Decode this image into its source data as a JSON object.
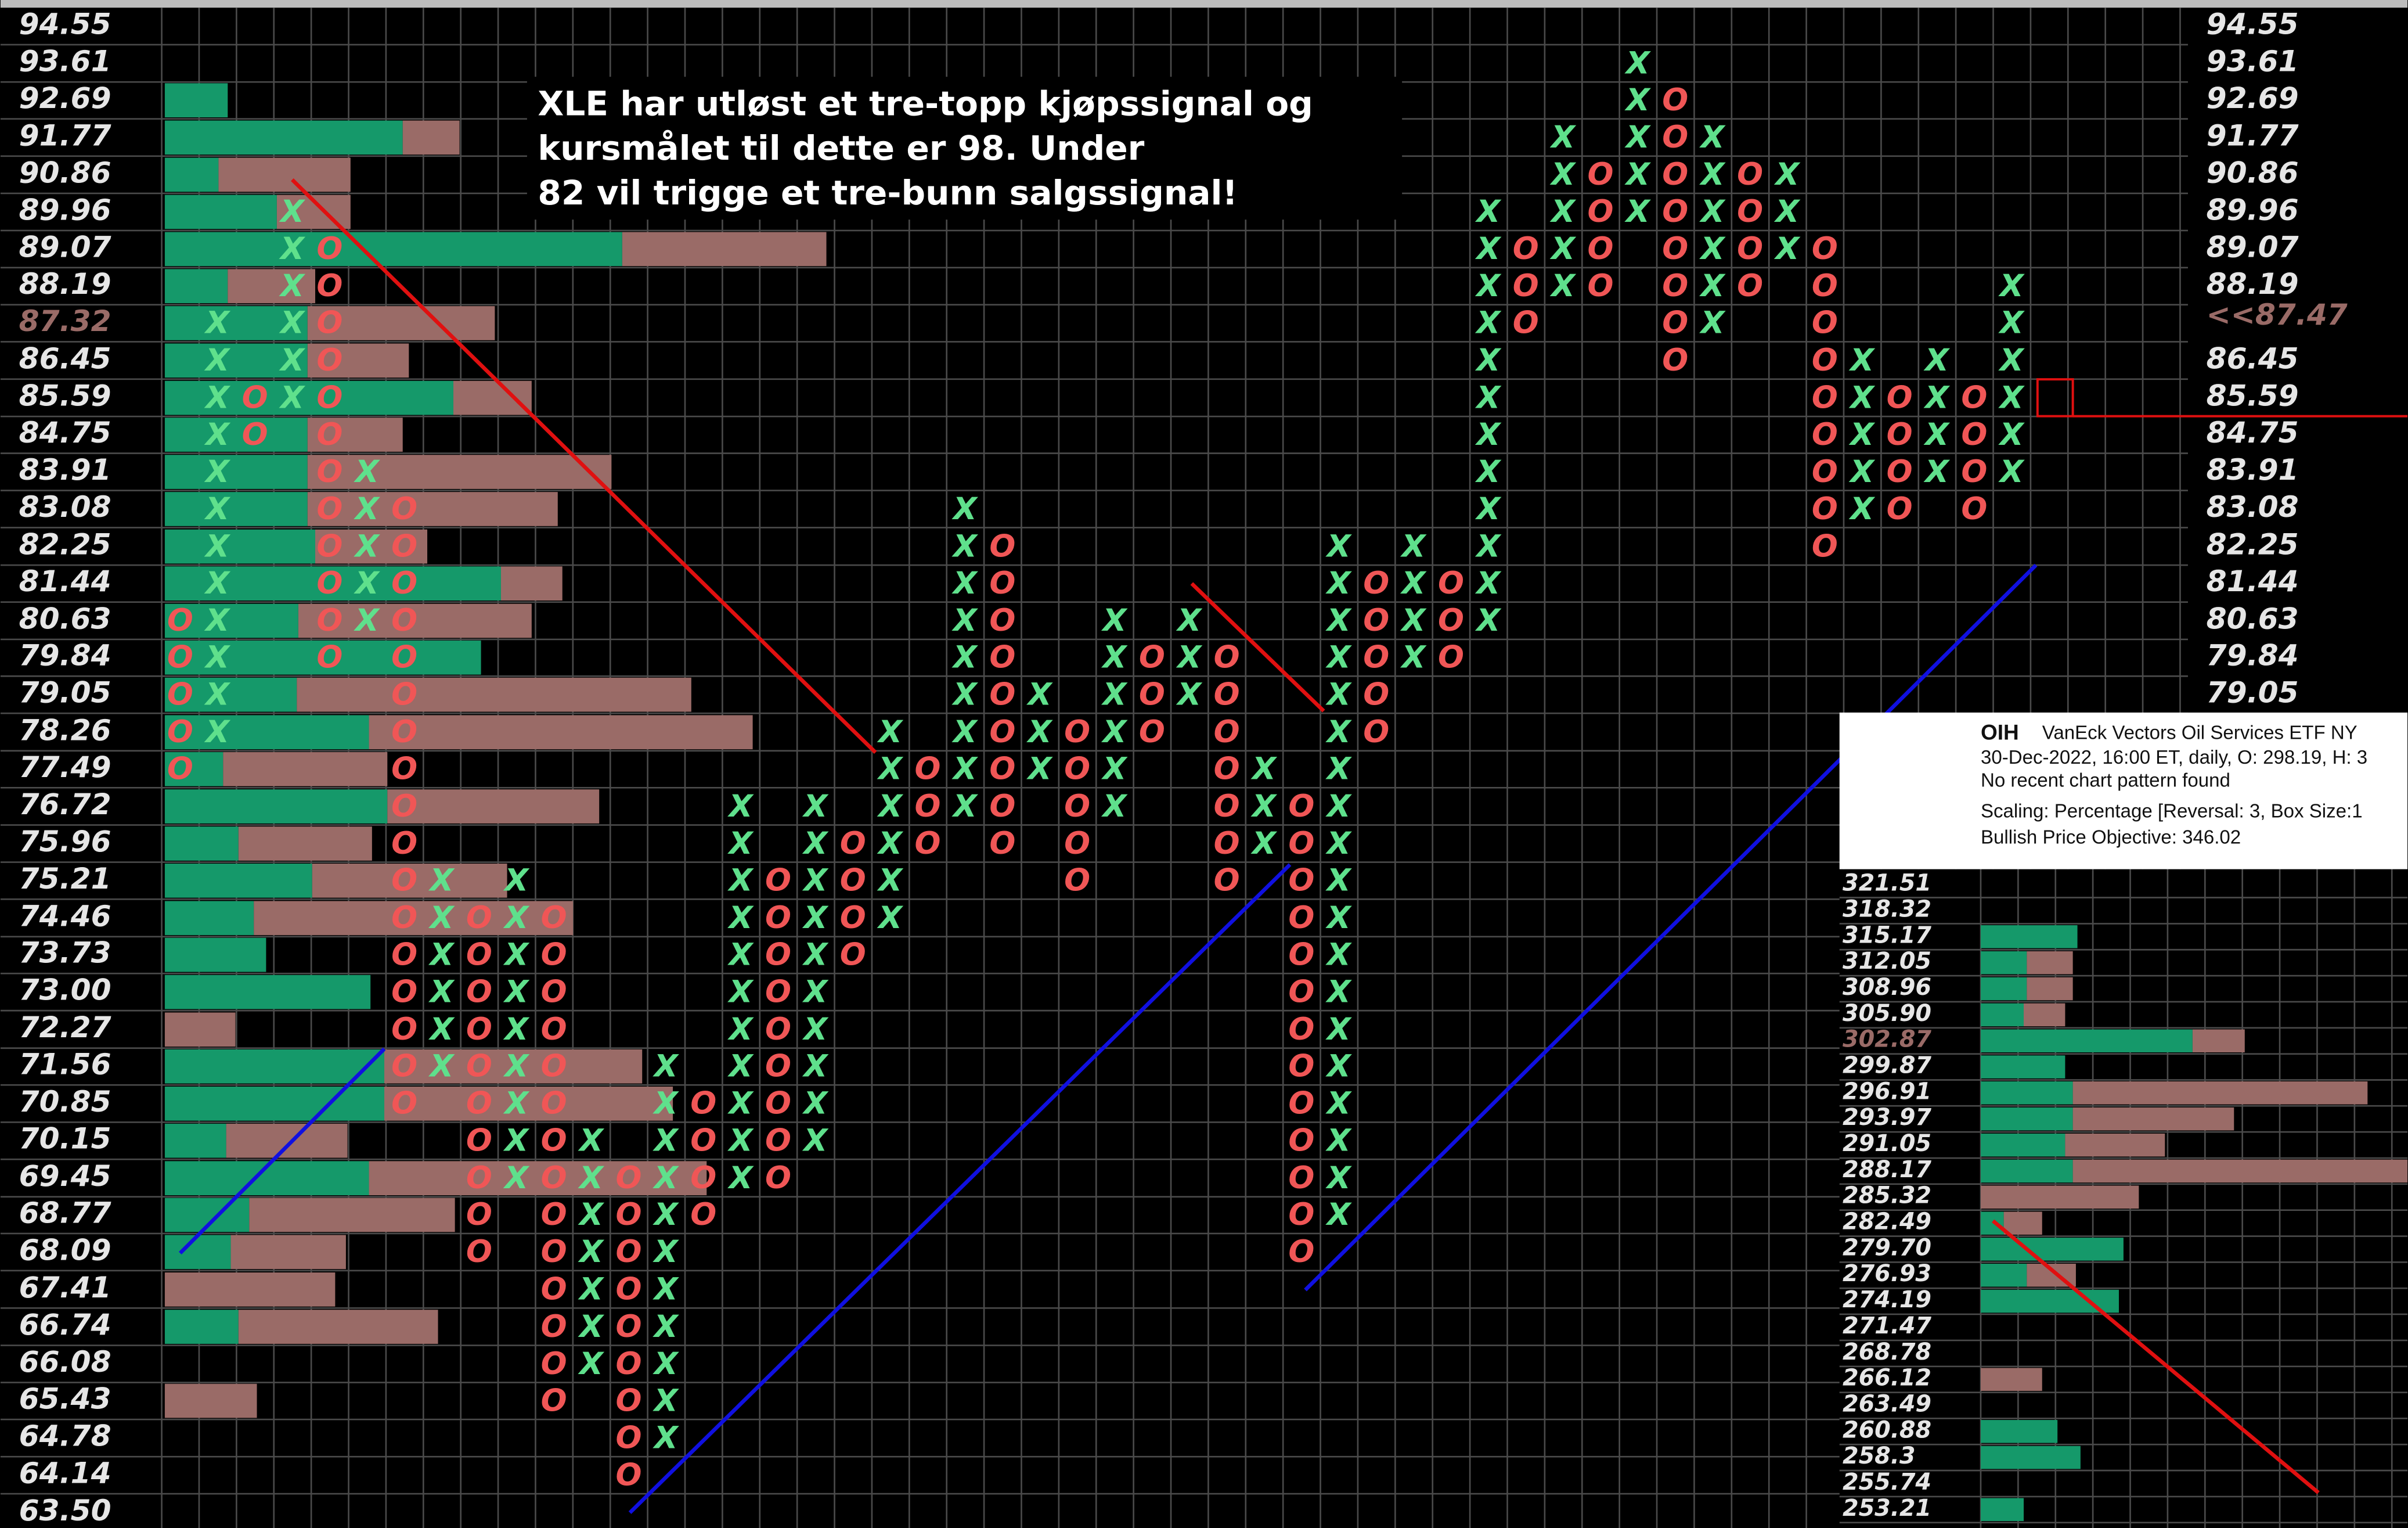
{
  "chart_data": [
    {
      "type": "point_and_figure",
      "annotation": "XLE har utløst et tre-topp kjøpssignal og kursmålet til dette er 98. Under 82 vil trigge et tre-bunn salgssignal!",
      "log": true,
      "grid": true,
      "x_color": "#5fe08c",
      "o_color": "#f05656",
      "up_color": "#15996a",
      "down_color": "#9a6b67",
      "current_level": 87.32,
      "y2_current": 87.47,
      "ylim": [
        {
          "value": 63.5,
          "label": "63.50"
        },
        94.55
      ],
      "yticks": [
        94.55,
        93.61,
        92.69,
        91.77,
        90.86,
        89.96,
        89.07,
        88.19,
        87.32,
        86.45,
        85.59,
        84.75,
        83.91,
        83.08,
        82.25,
        81.44,
        80.63,
        79.84,
        79.05,
        78.26,
        77.49,
        76.72,
        75.96,
        75.21,
        74.46,
        73.73,
        {
          "value": 73,
          "label": "73.00"
        },
        72.27,
        71.56,
        70.85,
        70.15,
        69.45,
        68.77,
        68.09,
        67.41,
        66.74,
        66.08,
        65.43,
        64.78,
        64.14,
        {
          "value": 63.5,
          "label": "63.50"
        }
      ],
      "y2ticks": [
        94.55,
        93.61,
        92.69,
        91.77,
        90.86,
        89.96,
        89.07,
        88.19,
        {
          "value": 87.47,
          "label": "<<87.47"
        },
        86.45,
        85.59,
        84.75,
        83.91,
        83.08,
        82.25,
        81.44,
        80.63,
        79.84,
        79.05
      ],
      "volume_up": [
        0,
        0,
        41,
        155,
        35,
        73,
        298,
        41,
        93,
        93,
        188,
        93,
        93,
        93,
        98,
        219,
        87,
        206,
        86,
        133,
        38,
        145,
        48,
        96,
        58,
        66,
        134,
        0,
        143,
        143,
        40,
        133,
        55,
        43,
        0,
        48,
        0,
        0,
        0,
        0,
        0
      ],
      "volume_down": [
        0,
        0,
        0,
        37,
        86,
        48,
        133,
        57,
        122,
        66,
        51,
        62,
        198,
        163,
        73,
        40,
        152,
        0,
        257,
        250,
        107,
        138,
        87,
        127,
        208,
        0,
        0,
        46,
        168,
        188,
        79,
        220,
        134,
        75,
        111,
        130,
        0,
        60,
        0,
        0,
        0
      ],
      "columns": [
        {
          "kind": "O",
          "high": 80.63,
          "low": 77.49
        },
        {
          "kind": "X",
          "high": 87.32,
          "low": 78.26
        },
        {
          "kind": "O",
          "high": 85.59,
          "low": 84.75
        },
        {
          "kind": "X",
          "high": 89.96,
          "low": 85.59
        },
        {
          "kind": "O",
          "high": 89.07,
          "low": 79.84
        },
        {
          "kind": "X",
          "high": 83.91,
          "low": 80.63
        },
        {
          "kind": "O",
          "high": 83.08,
          "low": 70.85
        },
        {
          "kind": "X",
          "high": 75.21,
          "low": 71.56
        },
        {
          "kind": "O",
          "high": 74.46,
          "low": 68.09
        },
        {
          "kind": "X",
          "high": 75.21,
          "low": 69.45
        },
        {
          "kind": "O",
          "high": 74.46,
          "low": 65.43
        },
        {
          "kind": "X",
          "high": 70.15,
          "low": 66.08
        },
        {
          "kind": "O",
          "high": 69.45,
          "low": 64.14
        },
        {
          "kind": "X",
          "high": 71.56,
          "low": 64.78
        },
        {
          "kind": "O",
          "high": 70.85,
          "low": 68.77
        },
        {
          "kind": "X",
          "high": 76.72,
          "low": 69.45
        },
        {
          "kind": "O",
          "high": 75.21,
          "low": 69.45
        },
        {
          "kind": "X",
          "high": 76.72,
          "low": 70.15
        },
        {
          "kind": "O",
          "high": 75.96,
          "low": 73.73
        },
        {
          "kind": "X",
          "high": 78.26,
          "low": 74.46
        },
        {
          "kind": "O",
          "high": 77.49,
          "low": 75.96
        },
        {
          "kind": "X",
          "high": 83.08,
          "low": 76.72
        },
        {
          "kind": "O",
          "high": 82.25,
          "low": 75.96
        },
        {
          "kind": "X",
          "high": 79.05,
          "low": 77.49
        },
        {
          "kind": "O",
          "high": 78.26,
          "low": 75.21
        },
        {
          "kind": "X",
          "high": 80.63,
          "low": 76.72
        },
        {
          "kind": "O",
          "high": 79.84,
          "low": 78.26
        },
        {
          "kind": "X",
          "high": 80.63,
          "low": 79.05
        },
        {
          "kind": "O",
          "high": 79.84,
          "low": 75.21
        },
        {
          "kind": "X",
          "high": 77.49,
          "low": 75.96
        },
        {
          "kind": "O",
          "high": 76.72,
          "low": 68.09
        },
        {
          "kind": "X",
          "high": 82.25,
          "low": 68.77
        },
        {
          "kind": "O",
          "high": 81.44,
          "low": 78.26
        },
        {
          "kind": "X",
          "high": 82.25,
          "low": 79.84
        },
        {
          "kind": "O",
          "high": 81.44,
          "low": 79.84
        },
        {
          "kind": "X",
          "high": 89.96,
          "low": 80.63
        },
        {
          "kind": "O",
          "high": 89.07,
          "low": 87.32
        },
        {
          "kind": "X",
          "high": 91.77,
          "low": 88.19
        },
        {
          "kind": "O",
          "high": 90.86,
          "low": 88.19
        },
        {
          "kind": "X",
          "high": 93.61,
          "low": 89.96
        },
        {
          "kind": "O",
          "high": 92.69,
          "low": 86.45
        },
        {
          "kind": "X",
          "high": 91.77,
          "low": 87.32
        },
        {
          "kind": "O",
          "high": 90.86,
          "low": 88.19
        },
        {
          "kind": "X",
          "high": 90.86,
          "low": 89.07
        },
        {
          "kind": "O",
          "high": 89.07,
          "low": 82.25
        },
        {
          "kind": "X",
          "high": 86.45,
          "low": 83.08
        },
        {
          "kind": "O",
          "high": 85.59,
          "low": 83.08
        },
        {
          "kind": "X",
          "high": 86.45,
          "low": 83.91
        },
        {
          "kind": "O",
          "high": 85.59,
          "low": 83.08
        },
        {
          "kind": "X",
          "high": 88.19,
          "low": 83.91
        }
      ]
    },
    {
      "type": "volume_profile",
      "symbol": "OIH",
      "name": "VanEck Vectors Oil Services ETF  NY",
      "date_line": "30-Dec-2022, 16:00 ET, daily, O: 298.19, H: 3",
      "pattern": "No recent chart pattern found",
      "scaling": "Scaling: Percentage [Reversal: 3, Box Size:1",
      "objective": "Bullish Price Objective: 346.02",
      "log": true,
      "current_level": 302.87,
      "up_color": "#15996a",
      "down_color": "#9a6b67",
      "ylim": [
        253.21,
        321.51
      ],
      "yticks": [
        321.51,
        318.32,
        315.17,
        312.05,
        308.96,
        {
          "value": 305.9,
          "label": "305.90"
        },
        302.87,
        299.87,
        296.91,
        293.97,
        291.05,
        288.17,
        285.32,
        282.49,
        {
          "value": 279.7,
          "label": "279.70"
        },
        276.93,
        274.19,
        271.47,
        268.78,
        266.12,
        263.49,
        260.88,
        258.3,
        255.74,
        253.21
      ],
      "volume_up": [
        0,
        0,
        63,
        30,
        30,
        28,
        138,
        55,
        60,
        60,
        55,
        60,
        0,
        15,
        93,
        30,
        90,
        0,
        0,
        0,
        0,
        50,
        65,
        0,
        28
      ],
      "volume_down": [
        0,
        0,
        0,
        30,
        30,
        27,
        34,
        0,
        192,
        105,
        65,
        218,
        103,
        25,
        0,
        32,
        0,
        0,
        0,
        40,
        0,
        0,
        0,
        0,
        0
      ]
    }
  ]
}
